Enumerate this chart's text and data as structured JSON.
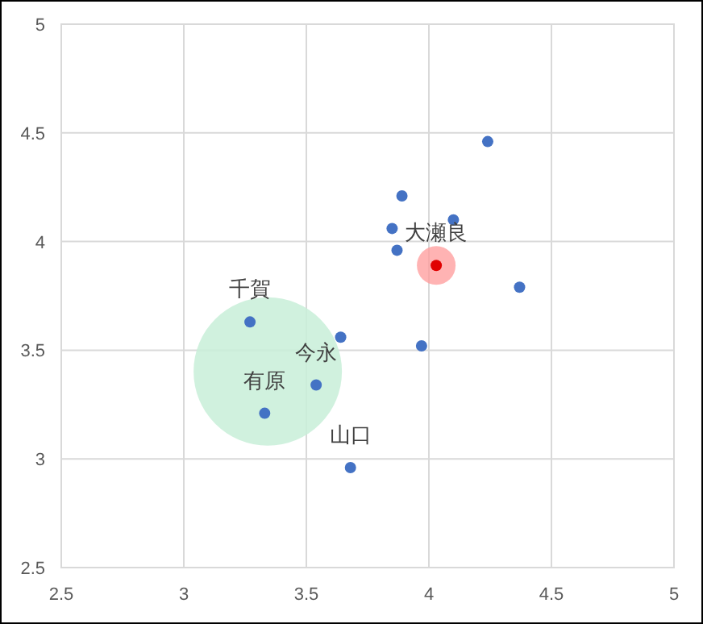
{
  "chart_data": {
    "type": "scatter",
    "xlim": [
      2.5,
      5
    ],
    "ylim": [
      2.5,
      5
    ],
    "xticks": [
      2.5,
      3,
      3.5,
      4,
      4.5,
      5
    ],
    "yticks": [
      2.5,
      3,
      3.5,
      4,
      4.5,
      5
    ],
    "grid": true,
    "marker": "circle",
    "series": [
      {
        "color": "#4472c4",
        "x": [
          4.24,
          3.89,
          4.1,
          3.85,
          3.87,
          4.37,
          3.27,
          3.64,
          3.97,
          3.54,
          3.33,
          3.68
        ],
        "values": [
          4.46,
          4.21,
          4.1,
          4.06,
          3.96,
          3.79,
          3.63,
          3.56,
          3.52,
          3.34,
          3.21,
          2.96
        ]
      },
      {
        "color": "#e00000",
        "x": [
          4.03
        ],
        "values": [
          3.89
        ]
      }
    ],
    "annotations": [
      {
        "text": "大瀬良",
        "x": 4.03,
        "y": 3.89
      },
      {
        "text": "千賀",
        "x": 3.27,
        "y": 3.63
      },
      {
        "text": "今永",
        "x": 3.54,
        "y": 3.34
      },
      {
        "text": "有原",
        "x": 3.33,
        "y": 3.21
      },
      {
        "text": "山口",
        "x": 3.68,
        "y": 2.96
      }
    ]
  }
}
